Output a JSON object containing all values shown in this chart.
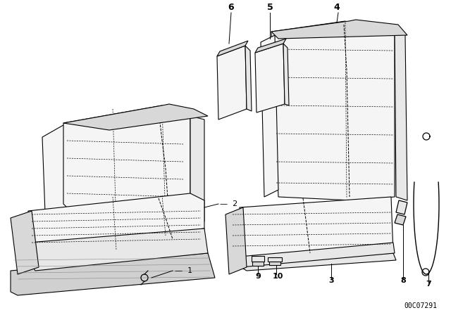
{
  "bg_color": "#ffffff",
  "line_color": "#000000",
  "diagram_id": "00C07291",
  "figsize": [
    6.4,
    4.48
  ],
  "dpi": 100
}
